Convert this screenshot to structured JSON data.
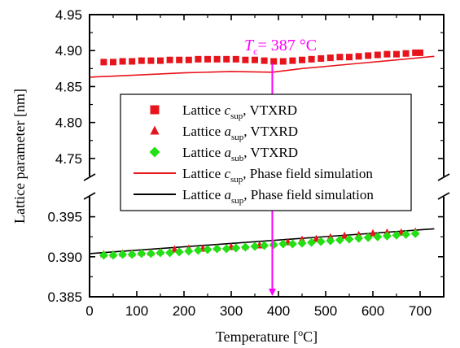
{
  "chart_data": {
    "type": "scatter",
    "xlabel": "Temperature [°C]",
    "ylabel": "Lattice parameter [nm]",
    "xlim": [
      0,
      750
    ],
    "x_ticks": [
      "0",
      "100",
      "200",
      "300",
      "400",
      "500",
      "600",
      "700"
    ],
    "y_axis_break": true,
    "upper_panel": {
      "ylim": [
        4.725,
        4.95
      ],
      "y_ticks": [
        "4.75",
        "4.80",
        "4.85",
        "4.90",
        "4.95"
      ]
    },
    "lower_panel": {
      "ylim": [
        0.385,
        0.3975
      ],
      "y_ticks": [
        "0.385",
        "0.390",
        "0.395"
      ]
    },
    "annotation": {
      "label": "T",
      "subscript": "c",
      "value_text": "= 387 °C",
      "x": 387,
      "color": "#ff00ff"
    },
    "legend_position": "center",
    "series": [
      {
        "name": "Lattice c_sup, VTXRD",
        "legend": {
          "pre": "Lattice ",
          "var": "c",
          "sub": "sup",
          "post": ", VTXRD"
        },
        "marker": "square",
        "color": "#e8141c",
        "panel": "upper",
        "x": [
          30,
          50,
          70,
          90,
          110,
          130,
          150,
          170,
          190,
          210,
          230,
          250,
          270,
          290,
          310,
          330,
          350,
          370,
          390,
          410,
          430,
          450,
          470,
          490,
          510,
          530,
          550,
          570,
          590,
          610,
          630,
          650,
          670,
          690,
          700
        ],
        "y": [
          4.884,
          4.884,
          4.885,
          4.885,
          4.886,
          4.886,
          4.886,
          4.887,
          4.887,
          4.887,
          4.888,
          4.888,
          4.888,
          4.888,
          4.888,
          4.887,
          4.887,
          4.886,
          4.885,
          4.885,
          4.886,
          4.887,
          4.888,
          4.889,
          4.89,
          4.891,
          4.891,
          4.892,
          4.893,
          4.894,
          4.895,
          4.895,
          4.896,
          4.897,
          4.897
        ]
      },
      {
        "name": "Lattice a_sup, VTXRD",
        "legend": {
          "pre": "Lattice ",
          "var": "a",
          "sub": "sup",
          "post": ", VTXRD"
        },
        "marker": "triangle",
        "color": "#e8141c",
        "panel": "lower",
        "x": [
          30,
          50,
          70,
          90,
          110,
          130,
          150,
          180,
          210,
          240,
          270,
          300,
          330,
          360,
          390,
          420,
          450,
          480,
          510,
          540,
          570,
          600,
          630,
          660,
          690
        ],
        "y": [
          0.3903,
          0.3903,
          0.3904,
          0.3904,
          0.3905,
          0.3905,
          0.3906,
          0.3909,
          0.391,
          0.391,
          0.3911,
          0.3912,
          0.3913,
          0.3914,
          0.3916,
          0.3918,
          0.3921,
          0.3922,
          0.3924,
          0.3926,
          0.3927,
          0.3929,
          0.393,
          0.393,
          0.3931
        ]
      },
      {
        "name": "Lattice a_sub, VTXRD",
        "legend": {
          "pre": "Lattice ",
          "var": "a",
          "sub": "sub",
          "post": ", VTXRD"
        },
        "marker": "diamond",
        "color": "#22e014",
        "panel": "lower",
        "x": [
          30,
          50,
          70,
          90,
          110,
          130,
          150,
          170,
          190,
          210,
          230,
          250,
          270,
          290,
          310,
          330,
          350,
          370,
          390,
          410,
          430,
          450,
          470,
          490,
          510,
          530,
          550,
          570,
          590,
          610,
          630,
          650,
          670,
          690
        ],
        "y": [
          0.3902,
          0.3902,
          0.3903,
          0.3903,
          0.3904,
          0.3904,
          0.3905,
          0.3905,
          0.3906,
          0.3907,
          0.3908,
          0.3909,
          0.391,
          0.391,
          0.3911,
          0.3912,
          0.3913,
          0.3914,
          0.3915,
          0.3916,
          0.3916,
          0.3917,
          0.3918,
          0.3919,
          0.392,
          0.3921,
          0.3922,
          0.3923,
          0.3924,
          0.3925,
          0.3926,
          0.3927,
          0.3928,
          0.3929
        ]
      },
      {
        "name": "Lattice c_sup, Phase field simulation",
        "legend": {
          "pre": "Lattice ",
          "var": "c",
          "sub": "sup",
          "post": ", Phase field simulation"
        },
        "marker": "line",
        "color": "#e8141c",
        "panel": "upper",
        "x": [
          0,
          100,
          200,
          300,
          387,
          450,
          550,
          650,
          730
        ],
        "y": [
          4.863,
          4.866,
          4.869,
          4.871,
          4.87,
          4.875,
          4.881,
          4.887,
          4.892
        ]
      },
      {
        "name": "Lattice a_sup, Phase field simulation",
        "legend": {
          "pre": "Lattice ",
          "var": "a",
          "sub": "sup",
          "post": ", Phase field simulation"
        },
        "marker": "line",
        "color": "#000000",
        "panel": "lower",
        "x": [
          0,
          730
        ],
        "y": [
          0.3904,
          0.3935
        ]
      }
    ]
  }
}
